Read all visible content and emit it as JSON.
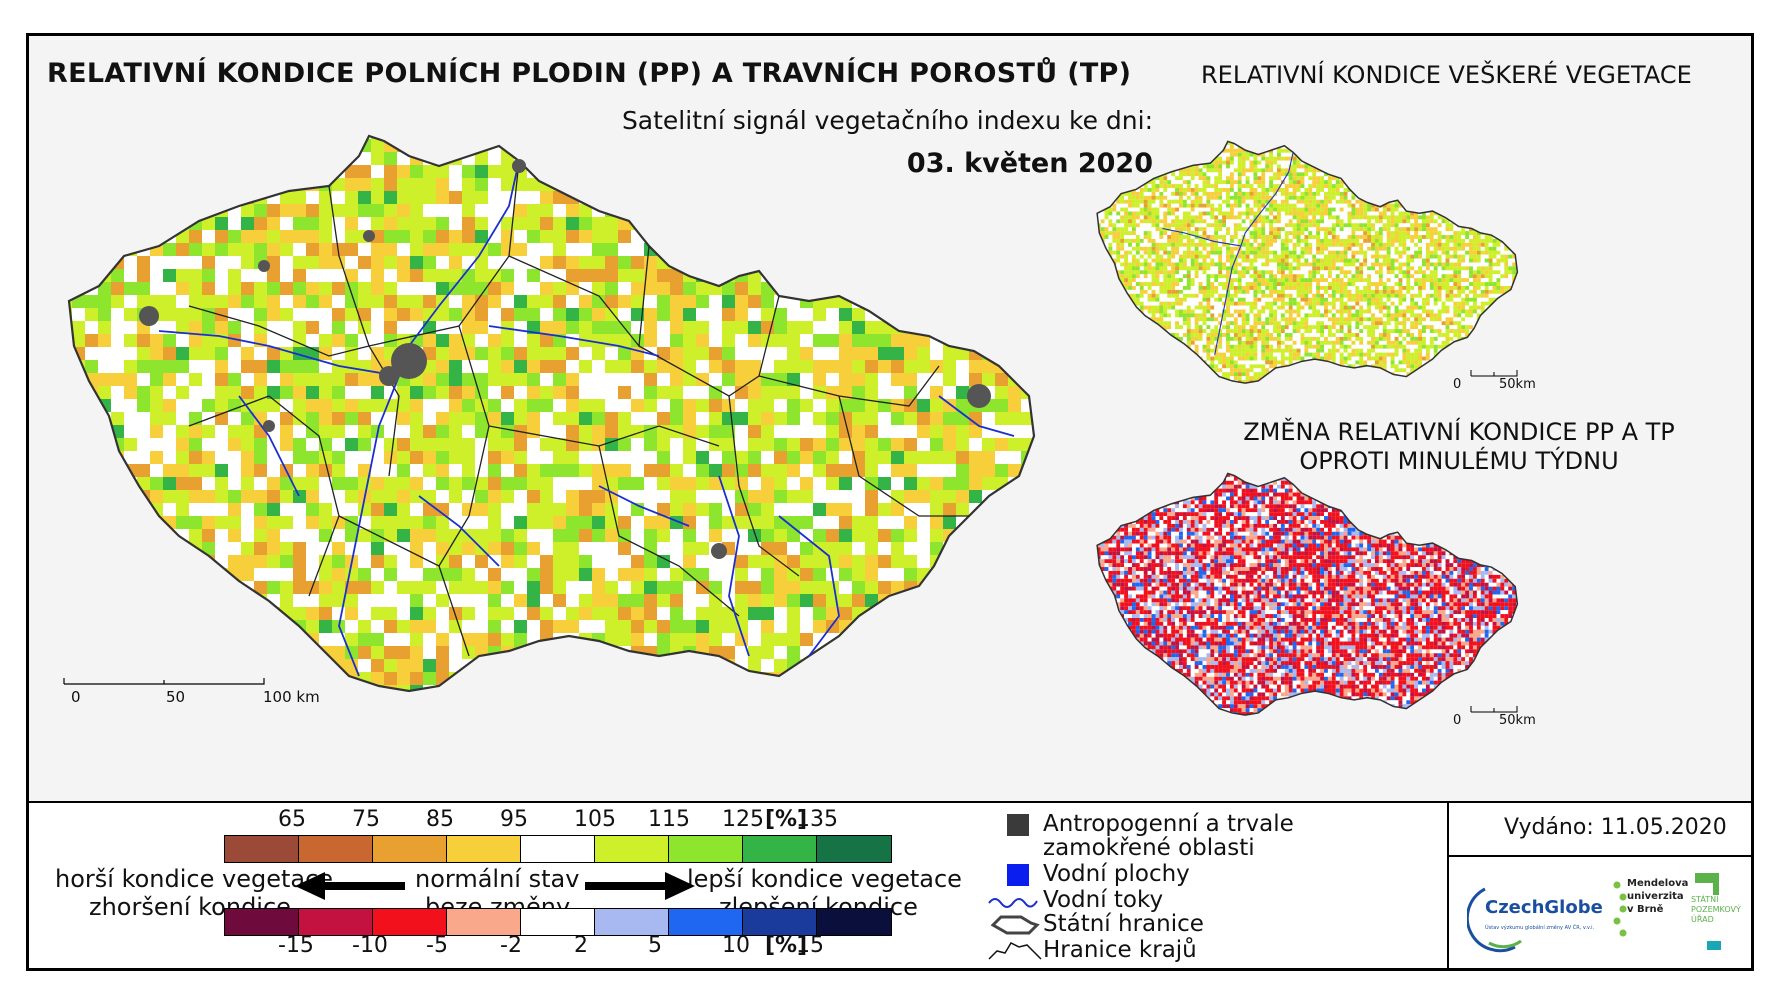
{
  "main_title": "RELATIVNÍ KONDICE POLNÍCH PLODIN (PP) A TRAVNÍCH POROSTŮ (TP)",
  "subtitle": "Satelitní signál vegetačního indexu ke dni:",
  "date": "03. květen 2020",
  "right_title_1": "RELATIVNÍ KONDICE VEŠKERÉ VEGETACE",
  "right_title_2_line1": "ZMĚNA RELATIVNÍ KONDICE PP A TP",
  "right_title_2_line2": "OPROTI MINULÉMU TÝDNU",
  "main_scale": {
    "l0": "0",
    "l1": "50",
    "l2": "100 km"
  },
  "small_scale": {
    "l0": "0",
    "l1": "50km"
  },
  "condition_legend": {
    "values": [
      "65",
      "75",
      "85",
      "95",
      "105",
      "115",
      "125",
      "135"
    ],
    "unit": "[%]",
    "colors": [
      "#9b4a38",
      "#c8672f",
      "#e8a130",
      "#f7cf3a",
      "#ffffff",
      "#cdf02a",
      "#8ee52e",
      "#34b446",
      "#157346"
    ]
  },
  "change_legend": {
    "values": [
      "-15",
      "-10",
      "-5",
      "-2",
      "2",
      "5",
      "10",
      "15"
    ],
    "unit": "[%]",
    "colors": [
      "#6f0a3c",
      "#c41240",
      "#f2101c",
      "#f9a88c",
      "#ffffff",
      "#a8b8f0",
      "#1f66f0",
      "#1a3a9c",
      "#0a0f3c"
    ]
  },
  "labels": {
    "worse_condition": "horší kondice vegetace",
    "worsening": "zhoršení kondice",
    "normal": "normální stav",
    "no_change": "beze změny",
    "better_condition": "lepší kondice vegetace",
    "improvement": "zlepšení kondice"
  },
  "symbols": {
    "anthropogenic_line1": "Antropogenní a trvale",
    "anthropogenic_line2": "zamokřené oblasti",
    "water_areas": "Vodní plochy",
    "water_streams": "Vodní toky",
    "state_border": "Státní hranice",
    "region_border": "Hranice krajů"
  },
  "issued": "Vydáno: 11.05.2020",
  "logos": {
    "czechglobe": "CzechGlobe",
    "czechglobe_sub": "Ústav výzkumu globální změny AV ČR, v.v.i.",
    "mendel_1": "Mendelova",
    "mendel_2": "univerzita",
    "mendel_3": "v Brně",
    "spu_1": "STÁTNÍ",
    "spu_2": "POZEMKOVÝ",
    "spu_3": "ÚŘAD"
  }
}
